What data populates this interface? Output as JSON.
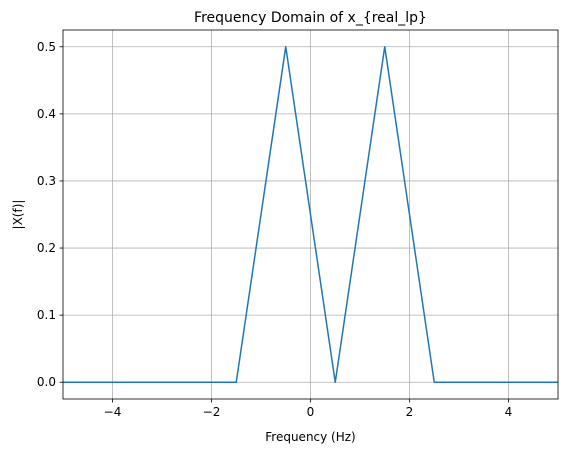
{
  "chart_data": {
    "type": "line",
    "title": "Frequency Domain of x_{real_lp}",
    "xlabel": "Frequency (Hz)",
    "ylabel": "|X(f)|",
    "xlim": [
      -5,
      5
    ],
    "ylim": [
      -0.025,
      0.525
    ],
    "grid": true,
    "xticks": [
      -4,
      -2,
      0,
      2,
      4
    ],
    "xtick_labels": [
      "−4",
      "−2",
      "0",
      "2",
      "4"
    ],
    "yticks": [
      0.0,
      0.1,
      0.2,
      0.3,
      0.4,
      0.5
    ],
    "ytick_labels": [
      "0.0",
      "0.1",
      "0.2",
      "0.3",
      "0.4",
      "0.5"
    ],
    "series": [
      {
        "color": "#1f77b4",
        "x": [
          -5,
          -1.5,
          -0.5,
          0.5,
          1.5,
          2.5,
          5
        ],
        "y": [
          0,
          0,
          0.5,
          0,
          0.5,
          0,
          0
        ]
      }
    ]
  }
}
